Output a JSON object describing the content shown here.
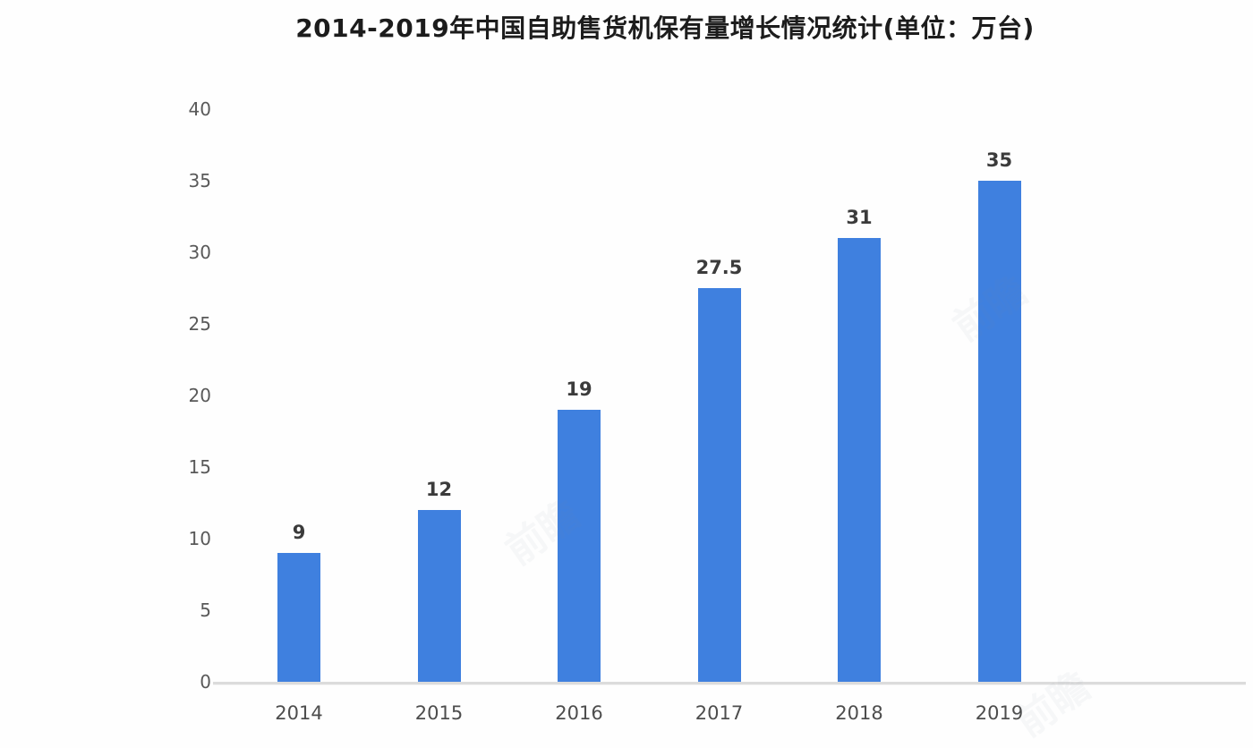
{
  "chart_data": {
    "type": "bar",
    "title": "2014-2019年中国自助售货机保有量增长情况统计(单位：万台)",
    "categories": [
      "2014",
      "2015",
      "2016",
      "2017",
      "2018",
      "2019"
    ],
    "values": [
      9,
      12,
      19,
      27.5,
      31,
      35
    ],
    "xlabel": "",
    "ylabel": "",
    "ylim": [
      0,
      40
    ],
    "yticks": [
      0,
      5,
      10,
      15,
      20,
      25,
      30,
      35,
      40
    ],
    "grid": false,
    "legend_position": "none",
    "bar_color": "#3f80df",
    "title_color": "#1c1c1c",
    "axis_label_color": "#595959",
    "value_label_color": "#3b3b3b",
    "baseline_color": "#dcdcdc"
  },
  "watermark": {
    "text": "前瞻"
  }
}
